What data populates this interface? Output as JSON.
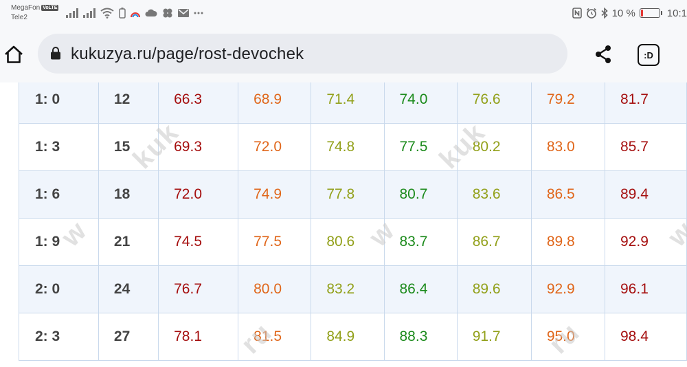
{
  "status_bar": {
    "carrier_1": "MegaFon",
    "carrier_1_badge": "VoLTE",
    "carrier_2": "Tele2",
    "battery_text": "10 %",
    "battery_level": 0.1,
    "time": "10:1",
    "icons": [
      "signal-icon",
      "signal-icon",
      "wifi-icon",
      "battery-saver-icon",
      "rainbow-icon",
      "cloud-icon",
      "flower-icon",
      "mail-icon",
      "more-dots-icon",
      "nfc-icon",
      "alarm-icon",
      "bluetooth-icon"
    ]
  },
  "toolbar": {
    "url": "kukuzya.ru/page/rost-devochek",
    "tabs_label": ":D",
    "icons": [
      "home-icon",
      "lock-icon",
      "share-icon"
    ]
  },
  "watermarks": [
    "w",
    "kuk",
    "w",
    "kuk",
    "ru",
    "w",
    "ru"
  ],
  "table": {
    "rows": [
      {
        "age": "1: 0",
        "months": "12",
        "values": [
          "66.3",
          "68.9",
          "71.4",
          "74.0",
          "76.6",
          "79.2",
          "81.7"
        ]
      },
      {
        "age": "1: 3",
        "months": "15",
        "values": [
          "69.3",
          "72.0",
          "74.8",
          "77.5",
          "80.2",
          "83.0",
          "85.7"
        ]
      },
      {
        "age": "1: 6",
        "months": "18",
        "values": [
          "72.0",
          "74.9",
          "77.8",
          "80.7",
          "83.6",
          "86.5",
          "89.4"
        ]
      },
      {
        "age": "1: 9",
        "months": "21",
        "values": [
          "74.5",
          "77.5",
          "80.6",
          "83.7",
          "86.7",
          "89.8",
          "92.9"
        ]
      },
      {
        "age": "2: 0",
        "months": "24",
        "values": [
          "76.7",
          "80.0",
          "83.2",
          "86.4",
          "89.6",
          "92.9",
          "96.1"
        ]
      },
      {
        "age": "2: 3",
        "months": "27",
        "values": [
          "78.1",
          "81.5",
          "84.9",
          "88.3",
          "91.7",
          "95.0",
          "98.4"
        ]
      }
    ],
    "column_colors": [
      "#a50f0f",
      "#e0661a",
      "#92a01a",
      "#1b8a1b",
      "#92a01a",
      "#e0661a",
      "#a50f0f"
    ]
  }
}
